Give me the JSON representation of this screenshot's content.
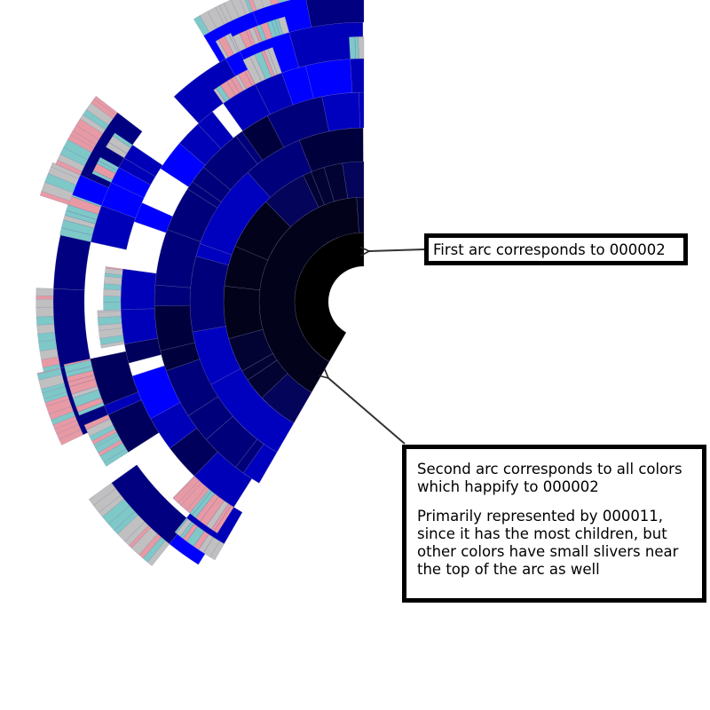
{
  "diagram": {
    "type": "sunburst",
    "center_color": "#000002",
    "levels": [
      {
        "name": "000002",
        "color": "#000000"
      },
      {
        "name": "000011",
        "color": "#02021a"
      },
      {
        "color": "#030333"
      },
      {
        "color": "#00007a"
      },
      {
        "color": "#0000b8"
      },
      {
        "color": "#0000ff"
      }
    ],
    "fringe_colors": [
      "#e89aa4",
      "#7ec8c8",
      "#c0c0c0"
    ]
  },
  "callouts": {
    "first": {
      "text": "First arc corresponds to 000002"
    },
    "second": {
      "line1": "Second arc corresponds to all colors which happify to 000002",
      "line2": "Primarily represented by 000011, since it has the most children, but other colors have small slivers near the top of the arc as well"
    }
  }
}
